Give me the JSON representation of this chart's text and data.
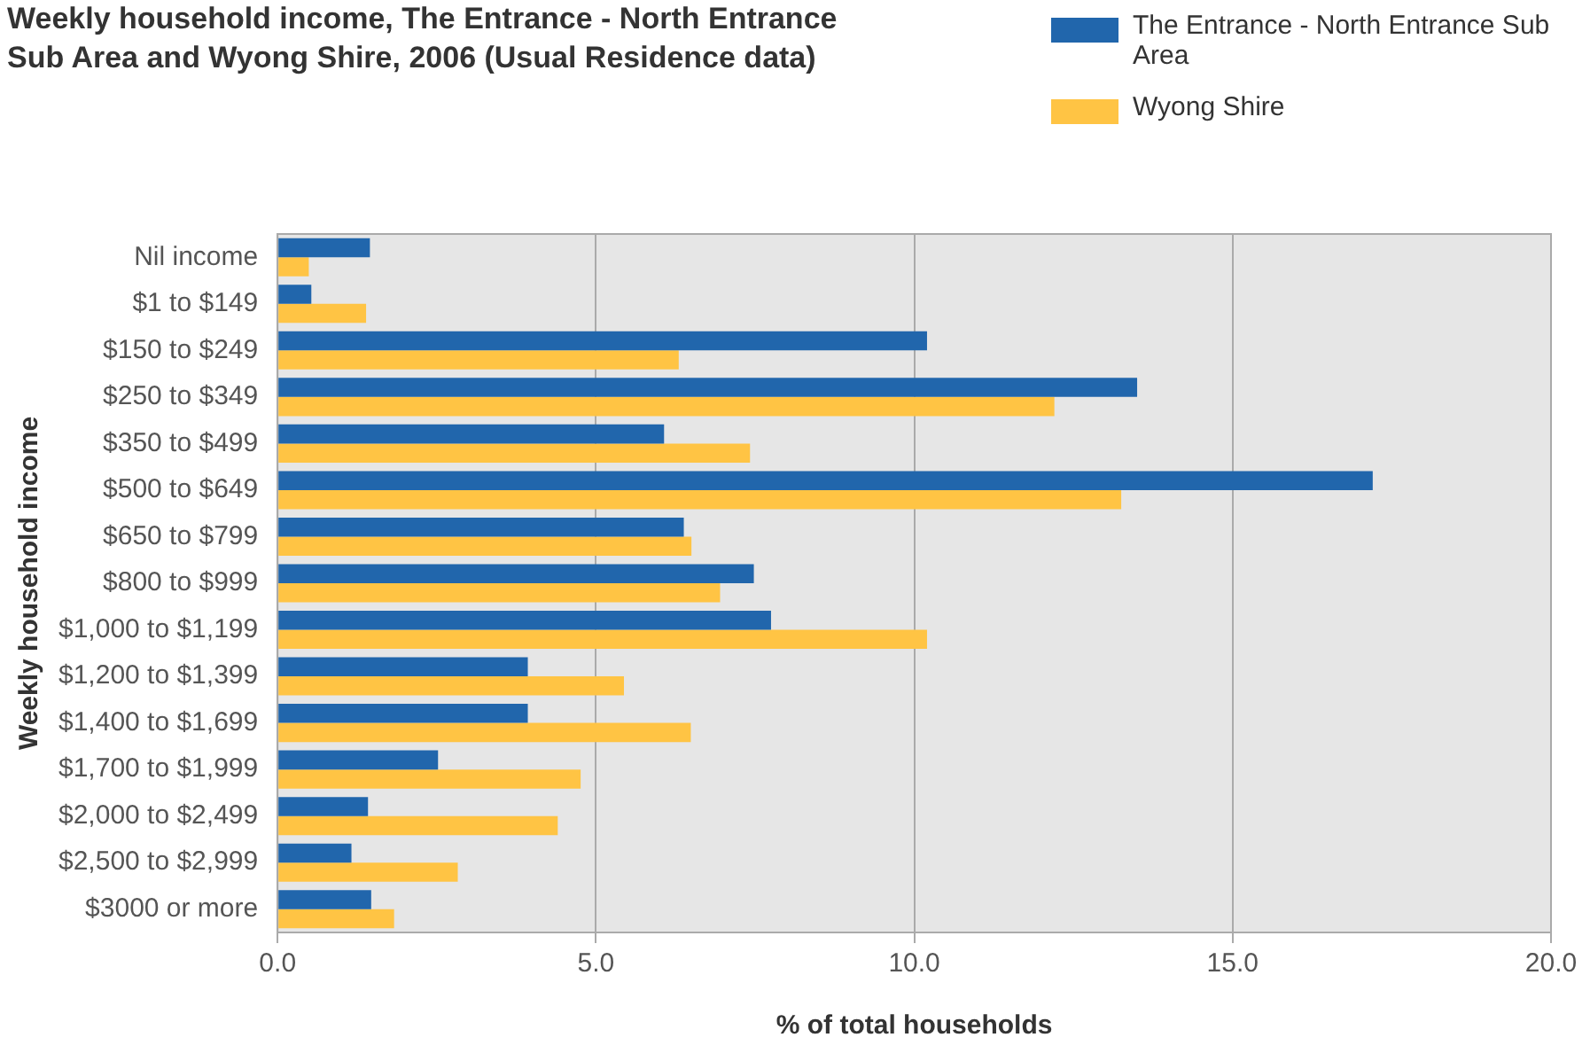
{
  "chart_data": {
    "type": "bar",
    "orientation": "horizontal",
    "title": "Weekly household income, The Entrance - North Entrance Sub Area and Wyong Shire, 2006 (Usual Residence data)",
    "xlabel": "% of total households",
    "ylabel": "Weekly household income",
    "categories": [
      "Nil income",
      "$1 to $149",
      "$150 to $249",
      "$250 to $349",
      "$350 to $499",
      "$500 to $649",
      "$650 to $799",
      "$800 to $999",
      "$1,000 to $1,199",
      "$1,200 to $1,399",
      "$1,400 to $1,699",
      "$1,700 to $1,999",
      "$2,000 to $2,499",
      "$2,500 to $2,999",
      "$3000 or more"
    ],
    "series": [
      {
        "name": "The Entrance - North Entrance Sub Area",
        "color": "#2166ac",
        "values": [
          1.45,
          0.53,
          10.2,
          13.5,
          6.07,
          17.2,
          6.38,
          7.48,
          7.75,
          3.93,
          3.93,
          2.52,
          1.42,
          1.16,
          1.47
        ]
      },
      {
        "name": "Wyong Shire",
        "color": "#ffc444",
        "values": [
          0.49,
          1.39,
          6.3,
          12.2,
          7.42,
          13.25,
          6.5,
          6.95,
          10.2,
          5.44,
          6.49,
          4.76,
          4.4,
          2.83,
          1.83
        ]
      }
    ],
    "xlim": [
      0,
      20
    ],
    "xticks": [
      {
        "value": 0,
        "label": "0.0"
      },
      {
        "value": 5,
        "label": "5.0"
      },
      {
        "value": 10,
        "label": "10.0"
      },
      {
        "value": 15,
        "label": "15.0"
      },
      {
        "value": 20,
        "label": "20.0"
      }
    ],
    "grid": "x",
    "legend": "top right"
  }
}
